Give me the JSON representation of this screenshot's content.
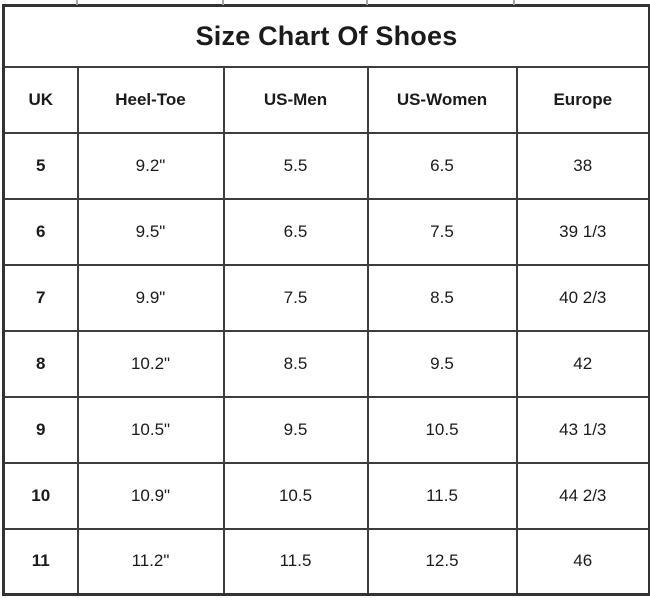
{
  "title": "Size Chart Of Shoes",
  "colors": {
    "background": "#ffffff",
    "border": "#3d3d3d",
    "text": "#1b1b1b"
  },
  "chart_data": {
    "type": "table",
    "title": "Size Chart Of Shoes",
    "columns": [
      "UK",
      "Heel-Toe",
      "US-Men",
      "US-Women",
      "Europe"
    ],
    "rows": [
      [
        "5",
        "9.2\"",
        "5.5",
        "6.5",
        "38"
      ],
      [
        "6",
        "9.5\"",
        "6.5",
        "7.5",
        "39 1/3"
      ],
      [
        "7",
        "9.9\"",
        "7.5",
        "8.5",
        "40 2/3"
      ],
      [
        "8",
        "10.2\"",
        "8.5",
        "9.5",
        "42"
      ],
      [
        "9",
        "10.5\"",
        "9.5",
        "10.5",
        "43 1/3"
      ],
      [
        "10",
        "10.9\"",
        "10.5",
        "11.5",
        "44 2/3"
      ],
      [
        "11",
        "11.2\"",
        "11.5",
        "12.5",
        "46"
      ]
    ]
  }
}
